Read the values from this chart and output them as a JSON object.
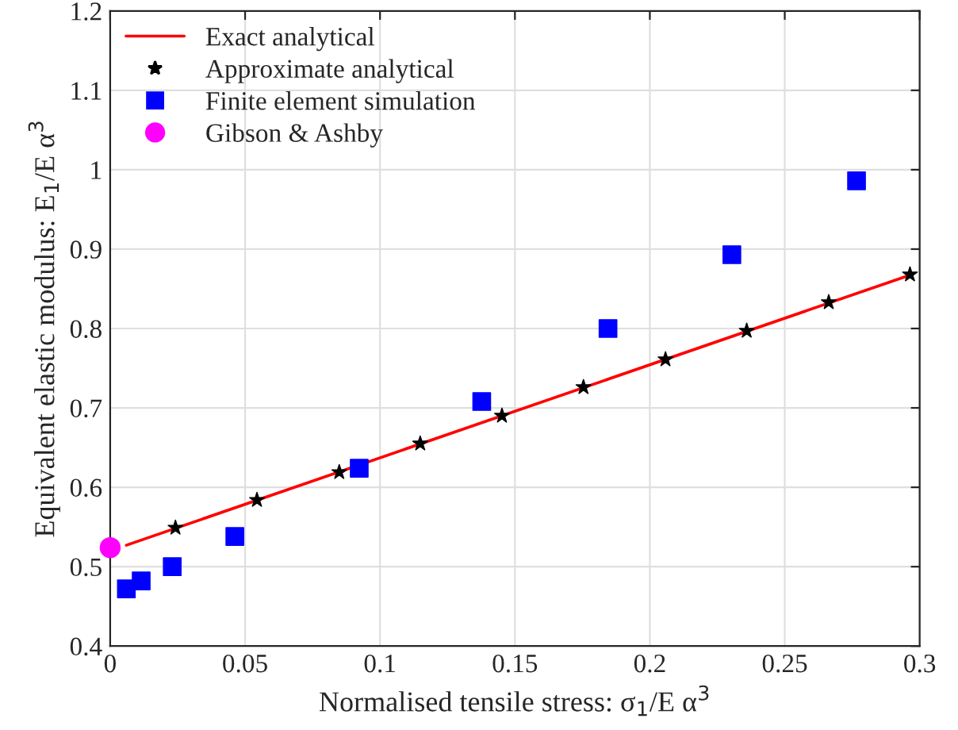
{
  "chart_data": {
    "type": "scatter",
    "xlabel": "Normalised tensile stress: σ$_{1}$/E α$^{3}$",
    "ylabel": "Equivalent elastic modulus: E$_{1}$/E α$^{3}$",
    "xlim": [
      0,
      0.3
    ],
    "xticks": [
      0,
      0.05,
      0.1,
      0.15,
      0.2,
      0.25,
      0.3
    ],
    "ylim": [
      0.4,
      1.2
    ],
    "yticks": [
      0.4,
      0.5,
      0.6,
      0.7,
      0.8,
      0.9,
      1,
      1.1,
      1.2
    ],
    "grid": true,
    "legend": "top left",
    "series": [
      {
        "name": "Exact analytical",
        "type": "line",
        "color": "#ff0000",
        "marker": "none",
        "line_style": "solid",
        "x": [
          0.006,
          0.297
        ],
        "values": [
          0.527,
          0.868
        ]
      },
      {
        "name": "Approximate analytical",
        "color": "#000000",
        "marker": "star",
        "x": [
          0.0242,
          0.0544,
          0.0849,
          0.1149,
          0.1452,
          0.1754,
          0.2058,
          0.2359,
          0.2663,
          0.2964
        ],
        "values": [
          0.549,
          0.584,
          0.619,
          0.655,
          0.69,
          0.726,
          0.761,
          0.797,
          0.833,
          0.868
        ]
      },
      {
        "name": "Finite element simulation",
        "color": "#0000ff",
        "marker": "square",
        "x": [
          0.006,
          0.0115,
          0.023,
          0.0462,
          0.0923,
          0.1377,
          0.1845,
          0.2304,
          0.2766
        ],
        "values": [
          0.472,
          0.482,
          0.5,
          0.538,
          0.624,
          0.708,
          0.8,
          0.893,
          0.986
        ]
      },
      {
        "name": "Gibson & Ashby",
        "color": "#ff00ff",
        "marker": "circle",
        "x": [
          0
        ],
        "values": [
          0.524
        ]
      }
    ]
  }
}
